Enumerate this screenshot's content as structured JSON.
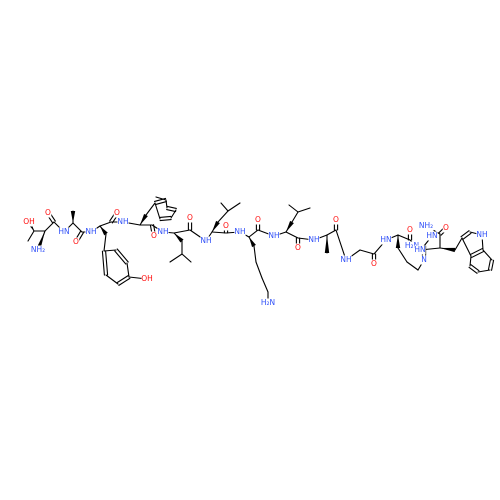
{
  "molecule": {
    "type": "chemical-structure",
    "colors": {
      "bond": "#000000",
      "O": "#ff0d0d",
      "N": "#3050f8"
    },
    "atom_labels": {
      "oh_thr": "OH",
      "nh2_thr": "NH₂",
      "o_thr": "O",
      "nh_ala1": "HN",
      "o_ala1": "O",
      "nh_tyr": "NH",
      "o_tyr": "O",
      "oh_tyr": "OH",
      "nh_phe": "NH",
      "o_phe": "O",
      "nh_leu1": "NH",
      "o_leu1": "O",
      "nh_leu2": "NH",
      "o_leu2": "O",
      "nh_lys": "NH",
      "o_lys": "O",
      "nh2_lys": "H₂N",
      "nh_leu3": "NH",
      "o_leu3": "O",
      "nh_ala2": "NH",
      "o_ala2": "O",
      "nh_gly": "NH",
      "o_gly": "O",
      "nh_arg": "HN",
      "o_arg": "O",
      "n_arg": "N",
      "nh2_arg": "H₂N",
      "hn_arg": "HN",
      "nh_trp": "HN",
      "o_trp": "O",
      "nh2_trp": "NH₂",
      "nh_indole": "NH"
    }
  }
}
